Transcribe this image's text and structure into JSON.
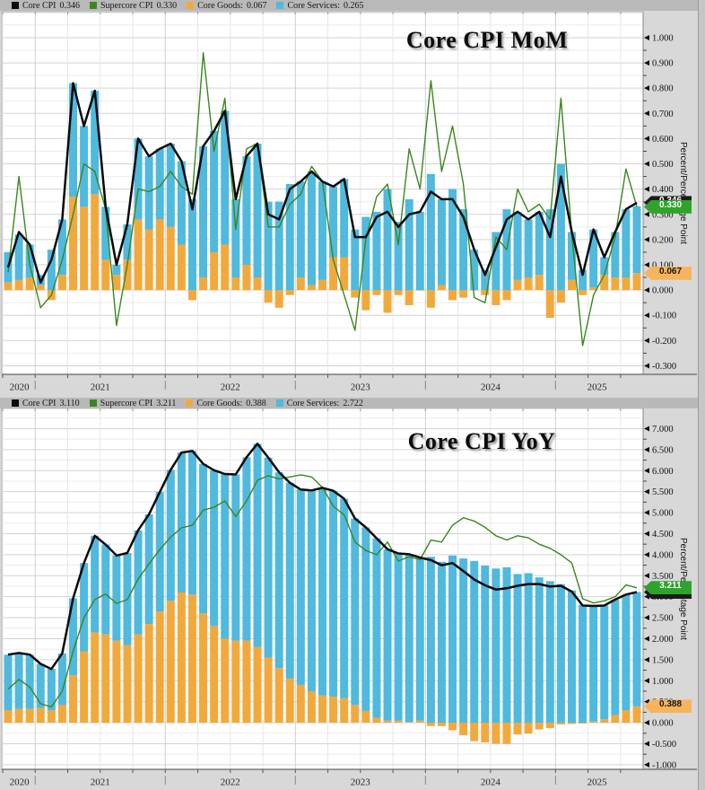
{
  "axis_title": "Percent/Percentage Point",
  "colors": {
    "core_cpi": "#0a0a0a",
    "supercore_cpi": "#3A871F",
    "core_goods": "#F2A93C",
    "core_services": "#4FB9DE",
    "core_badge_bg": "#1b1b1b",
    "supercore_badge_bg": "#2FA32B",
    "goods_badge_bg": "#F7B45C",
    "legend_bg": "#b9b9b9",
    "page_bg": "#d8d8d8",
    "plot_bg": "#ffffff",
    "grid_major": "#d2d2d2",
    "grid_minor": "#ebebeb",
    "grid_quarter": "#e6e6e6",
    "grid_year": "#cfcfcf",
    "axis_line": "#666666",
    "tick_color": "#111111"
  },
  "chart_data": [
    {
      "id": "mom",
      "type": "stacked-bar+lines",
      "title": "Core CPI MoM",
      "legend": [
        {
          "label": "Core CPI",
          "value": "0.346",
          "color_key": "core_cpi"
        },
        {
          "label": "Supercore CPI",
          "value": "0.330",
          "color_key": "supercore_cpi"
        },
        {
          "label": "Core Goods:",
          "value": "0.067",
          "color_key": "core_goods"
        },
        {
          "label": "Core Services:",
          "value": "0.265",
          "color_key": "core_services"
        }
      ],
      "badges": [
        {
          "name": "mom-core-cpi-badge",
          "label": "0.346",
          "value": 0.346,
          "color_key": "core_badge_bg",
          "text_color": "#ffffff",
          "z": 1
        },
        {
          "name": "mom-goods-badge",
          "label": "0.067",
          "value": 0.067,
          "color_key": "goods_badge_bg",
          "text_color": "#161616",
          "z": 2
        },
        {
          "name": "mom-supercore-badge",
          "label": "0.330",
          "value": 0.33,
          "color_key": "supercore_badge_bg",
          "text_color": "#ffffff",
          "z": 3
        }
      ],
      "y_axis": {
        "min": -0.334,
        "max": 1.103,
        "tick_from": -0.3,
        "tick_to": 1.0,
        "tick_step": 0.1,
        "minor_step": 0.05,
        "decimals": 3
      },
      "x_years": [
        "2020",
        "2021",
        "2022",
        "2023",
        "2024",
        "2025"
      ],
      "months": [
        "2020-10",
        "2020-11",
        "2020-12",
        "2021-01",
        "2021-02",
        "2021-03",
        "2021-04",
        "2021-05",
        "2021-06",
        "2021-07",
        "2021-08",
        "2021-09",
        "2021-10",
        "2021-11",
        "2021-12",
        "2022-01",
        "2022-02",
        "2022-03",
        "2022-04",
        "2022-05",
        "2022-06",
        "2022-07",
        "2022-08",
        "2022-09",
        "2022-10",
        "2022-11",
        "2022-12",
        "2023-01",
        "2023-02",
        "2023-03",
        "2023-04",
        "2023-05",
        "2023-06",
        "2023-07",
        "2023-08",
        "2023-09",
        "2023-10",
        "2023-11",
        "2023-12",
        "2024-01",
        "2024-02",
        "2024-03",
        "2024-04",
        "2024-05",
        "2024-06",
        "2024-07",
        "2024-08",
        "2024-09",
        "2024-10",
        "2024-11",
        "2024-12",
        "2025-01",
        "2025-02",
        "2025-03",
        "2025-04",
        "2025-05",
        "2025-06",
        "2025-07",
        "2025-08"
      ],
      "series": {
        "core_goods": [
          0.03,
          0.04,
          0.05,
          0.02,
          -0.04,
          0.06,
          0.37,
          0.33,
          0.38,
          0.12,
          0.06,
          0.12,
          0.28,
          0.24,
          0.28,
          0.25,
          0.18,
          -0.04,
          0.05,
          0.15,
          0.18,
          0.05,
          0.1,
          0.05,
          -0.05,
          -0.07,
          -0.02,
          0.05,
          0.02,
          0.04,
          0.13,
          0.13,
          -0.03,
          -0.08,
          -0.02,
          -0.09,
          -0.02,
          -0.06,
          0.0,
          -0.07,
          0.02,
          -0.04,
          -0.03,
          0.0,
          -0.02,
          -0.06,
          -0.04,
          0.04,
          0.05,
          0.06,
          -0.11,
          -0.05,
          0.04,
          -0.02,
          0.01,
          0.06,
          0.05,
          0.05,
          0.067
        ],
        "core_services": [
          0.12,
          0.18,
          0.13,
          0.04,
          0.16,
          0.22,
          0.45,
          0.32,
          0.41,
          0.21,
          0.04,
          0.14,
          0.32,
          0.29,
          0.28,
          0.33,
          0.33,
          0.36,
          0.52,
          0.48,
          0.53,
          0.31,
          0.43,
          0.53,
          0.35,
          0.35,
          0.42,
          0.38,
          0.45,
          0.39,
          0.28,
          0.31,
          0.24,
          0.29,
          0.31,
          0.4,
          0.27,
          0.36,
          0.31,
          0.46,
          0.34,
          0.4,
          0.32,
          0.16,
          0.08,
          0.23,
          0.32,
          0.27,
          0.23,
          0.25,
          0.32,
          0.5,
          0.19,
          0.08,
          0.23,
          0.07,
          0.18,
          0.27,
          0.265
        ],
        "core_cpi": [
          0.09,
          0.23,
          0.18,
          0.03,
          0.12,
          0.28,
          0.82,
          0.65,
          0.79,
          0.33,
          0.1,
          0.26,
          0.6,
          0.53,
          0.56,
          0.58,
          0.51,
          0.32,
          0.57,
          0.63,
          0.71,
          0.36,
          0.53,
          0.58,
          0.3,
          0.28,
          0.4,
          0.43,
          0.47,
          0.43,
          0.41,
          0.44,
          0.21,
          0.21,
          0.29,
          0.31,
          0.25,
          0.3,
          0.31,
          0.39,
          0.36,
          0.36,
          0.29,
          0.16,
          0.06,
          0.17,
          0.28,
          0.31,
          0.28,
          0.31,
          0.21,
          0.45,
          0.23,
          0.06,
          0.24,
          0.13,
          0.23,
          0.32,
          0.346
        ],
        "supercore_cpi": [
          0.07,
          0.45,
          0.1,
          -0.07,
          -0.02,
          0.12,
          0.3,
          0.5,
          0.47,
          0.32,
          -0.14,
          0.1,
          0.4,
          0.39,
          0.41,
          0.47,
          0.41,
          0.38,
          0.94,
          0.55,
          0.76,
          0.24,
          0.56,
          0.58,
          0.25,
          0.25,
          0.34,
          0.38,
          0.49,
          0.43,
          0.12,
          -0.02,
          -0.16,
          0.2,
          0.37,
          0.42,
          0.18,
          0.56,
          0.4,
          0.83,
          0.47,
          0.65,
          0.42,
          -0.03,
          -0.05,
          0.21,
          0.16,
          0.4,
          0.31,
          0.34,
          0.28,
          0.76,
          0.22,
          -0.22,
          -0.02,
          0.06,
          0.21,
          0.48,
          0.33
        ]
      }
    },
    {
      "id": "yoy",
      "type": "stacked-bar+lines",
      "title": "Core CPI YoY",
      "legend": [
        {
          "label": "Core CPI",
          "value": "3.110",
          "color_key": "core_cpi"
        },
        {
          "label": "Supercore CPI",
          "value": "3.211",
          "color_key": "supercore_cpi"
        },
        {
          "label": "Core Goods:",
          "value": "0.388",
          "color_key": "core_goods"
        },
        {
          "label": "Core Services:",
          "value": "2.722",
          "color_key": "core_services"
        }
      ],
      "badges": [
        {
          "name": "yoy-core-cpi-badge",
          "label": "3.110",
          "value": 3.11,
          "color_key": "core_badge_bg",
          "text_color": "#ffffff",
          "z": 1
        },
        {
          "name": "yoy-goods-badge",
          "label": "0.388",
          "value": 0.388,
          "color_key": "goods_badge_bg",
          "text_color": "#161616",
          "z": 2
        },
        {
          "name": "yoy-supercore-badge",
          "label": "3.211",
          "value": 3.211,
          "color_key": "supercore_badge_bg",
          "text_color": "#ffffff",
          "z": 3
        }
      ],
      "y_axis": {
        "min": -1.11,
        "max": 7.48,
        "tick_from": -1.0,
        "tick_to": 7.0,
        "tick_step": 0.5,
        "minor_step": 0.25,
        "decimals": 3
      },
      "x_years": [
        "2020",
        "2021",
        "2022",
        "2023",
        "2024",
        "2025"
      ],
      "months": [
        "2020-10",
        "2020-11",
        "2020-12",
        "2021-01",
        "2021-02",
        "2021-03",
        "2021-04",
        "2021-05",
        "2021-06",
        "2021-07",
        "2021-08",
        "2021-09",
        "2021-10",
        "2021-11",
        "2021-12",
        "2022-01",
        "2022-02",
        "2022-03",
        "2022-04",
        "2022-05",
        "2022-06",
        "2022-07",
        "2022-08",
        "2022-09",
        "2022-10",
        "2022-11",
        "2022-12",
        "2023-01",
        "2023-02",
        "2023-03",
        "2023-04",
        "2023-05",
        "2023-06",
        "2023-07",
        "2023-08",
        "2023-09",
        "2023-10",
        "2023-11",
        "2023-12",
        "2024-01",
        "2024-02",
        "2024-03",
        "2024-04",
        "2024-05",
        "2024-06",
        "2024-07",
        "2024-08",
        "2024-09",
        "2024-10",
        "2024-11",
        "2024-12",
        "2025-01",
        "2025-02",
        "2025-03",
        "2025-04",
        "2025-05",
        "2025-06",
        "2025-07",
        "2025-08"
      ],
      "series": {
        "core_goods": [
          0.3,
          0.33,
          0.33,
          0.35,
          0.3,
          0.42,
          1.13,
          1.7,
          2.15,
          2.1,
          1.95,
          1.85,
          2.1,
          2.35,
          2.65,
          2.9,
          3.1,
          3.05,
          2.6,
          2.3,
          2.0,
          1.95,
          1.95,
          1.8,
          1.55,
          1.3,
          1.05,
          0.9,
          0.75,
          0.65,
          0.62,
          0.58,
          0.42,
          0.28,
          0.12,
          0.05,
          0.05,
          0.02,
          0.05,
          -0.08,
          -0.08,
          -0.18,
          -0.3,
          -0.44,
          -0.47,
          -0.5,
          -0.5,
          -0.28,
          -0.26,
          -0.16,
          -0.13,
          -0.04,
          -0.03,
          -0.02,
          0.03,
          0.08,
          0.18,
          0.3,
          0.388
        ],
        "core_services": [
          1.32,
          1.33,
          1.29,
          1.05,
          0.98,
          1.23,
          1.83,
          2.1,
          2.3,
          2.14,
          2.03,
          2.19,
          2.48,
          2.61,
          2.84,
          3.12,
          3.33,
          3.42,
          3.56,
          3.71,
          3.92,
          3.96,
          4.37,
          4.84,
          4.76,
          4.66,
          4.66,
          4.65,
          4.78,
          4.94,
          4.9,
          4.75,
          4.44,
          4.37,
          4.27,
          4.08,
          3.98,
          3.99,
          3.88,
          3.95,
          3.83,
          3.98,
          3.91,
          3.85,
          3.74,
          3.67,
          3.7,
          3.54,
          3.56,
          3.46,
          3.37,
          3.3,
          3.15,
          2.81,
          2.75,
          2.71,
          2.75,
          2.75,
          2.722
        ],
        "core_cpi": [
          1.62,
          1.66,
          1.62,
          1.4,
          1.28,
          1.65,
          2.96,
          3.8,
          4.45,
          4.24,
          3.98,
          4.04,
          4.58,
          4.96,
          5.49,
          6.02,
          6.43,
          6.47,
          6.16,
          6.01,
          5.92,
          5.91,
          6.32,
          6.64,
          6.31,
          5.96,
          5.71,
          5.55,
          5.53,
          5.59,
          5.52,
          5.33,
          4.86,
          4.65,
          4.39,
          4.13,
          4.03,
          4.01,
          3.93,
          3.87,
          3.75,
          3.8,
          3.61,
          3.41,
          3.27,
          3.17,
          3.2,
          3.26,
          3.3,
          3.3,
          3.24,
          3.26,
          3.12,
          2.79,
          2.78,
          2.79,
          2.93,
          3.05,
          3.11
        ],
        "supercore_cpi": [
          0.8,
          1.03,
          0.85,
          0.45,
          0.38,
          0.75,
          1.7,
          2.5,
          2.93,
          3.06,
          2.84,
          2.93,
          3.42,
          3.78,
          4.12,
          4.42,
          4.64,
          4.7,
          5.06,
          5.13,
          5.28,
          4.91,
          5.28,
          5.77,
          5.88,
          5.8,
          5.85,
          5.9,
          5.85,
          5.6,
          5.15,
          4.95,
          4.3,
          4.1,
          4.0,
          4.3,
          3.85,
          3.95,
          3.88,
          4.35,
          4.3,
          4.7,
          4.88,
          4.8,
          4.65,
          4.45,
          4.35,
          4.45,
          4.4,
          4.25,
          4.15,
          4.0,
          3.8,
          2.95,
          2.85,
          2.9,
          3.0,
          3.28,
          3.211
        ]
      }
    }
  ]
}
